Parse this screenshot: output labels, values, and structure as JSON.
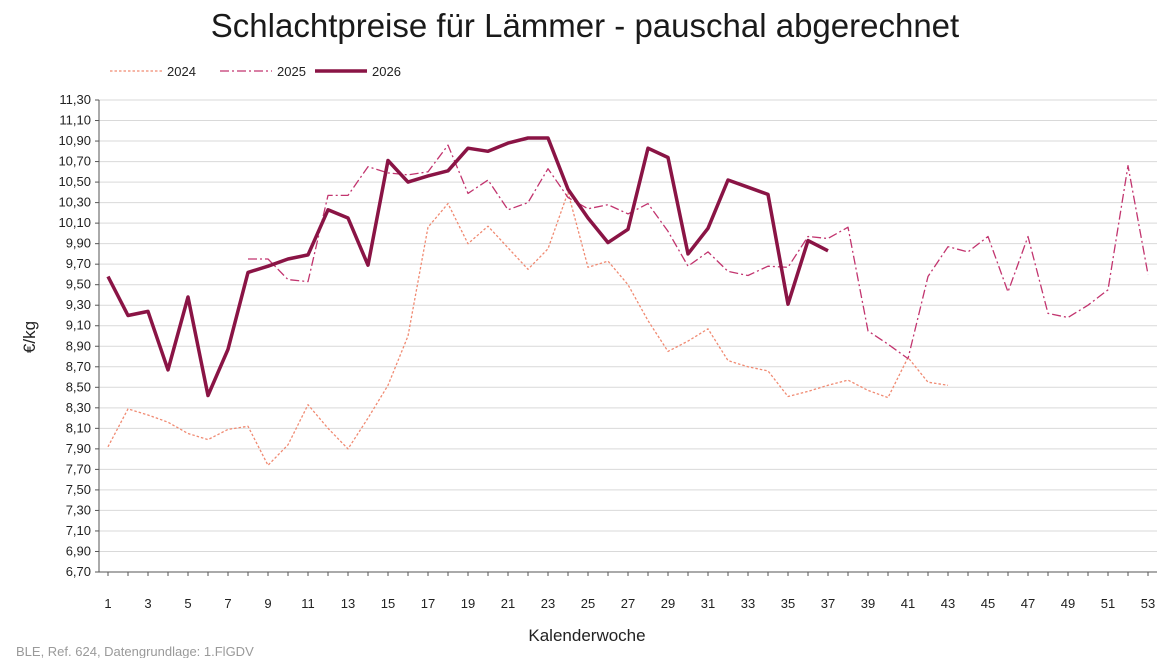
{
  "chart_data": {
    "type": "line",
    "title": "Schlachtpreise für Lämmer - pauschal abgerechnet",
    "xlabel": "Kalenderwoche",
    "ylabel": "€/kg",
    "source": "BLE, Ref. 624, Datengrundlage: 1.FlGDV",
    "ylim": [
      6.7,
      11.3
    ],
    "xlim": [
      1,
      53
    ],
    "grid": "horizontal",
    "legend_position": "top-left",
    "x_ticks": [
      1,
      3,
      5,
      7,
      9,
      11,
      13,
      15,
      17,
      19,
      21,
      23,
      25,
      27,
      29,
      31,
      33,
      35,
      37,
      39,
      41,
      43,
      45,
      47,
      49,
      51,
      53
    ],
    "y_ticks": [
      "6,70",
      "6,90",
      "7,10",
      "7,30",
      "7,50",
      "7,70",
      "7,90",
      "8,10",
      "8,30",
      "8,50",
      "8,70",
      "8,90",
      "9,10",
      "9,30",
      "9,50",
      "9,70",
      "9,90",
      "10,10",
      "10,30",
      "10,50",
      "10,70",
      "10,90",
      "11,10",
      "11,30"
    ],
    "series": [
      {
        "name": "2024",
        "style": "dotted",
        "color": "#f08a72",
        "x": [
          1,
          2,
          3,
          4,
          5,
          6,
          7,
          8,
          9,
          10,
          11,
          12,
          13,
          14,
          15,
          16,
          17,
          18,
          19,
          20,
          21,
          22,
          23,
          24,
          25,
          26,
          27,
          28,
          29,
          30,
          31,
          32,
          33,
          34,
          35,
          36,
          37,
          38,
          39,
          40,
          41,
          42,
          43
        ],
        "values": [
          7.92,
          8.29,
          8.23,
          8.16,
          8.05,
          7.99,
          8.09,
          8.12,
          7.74,
          7.94,
          8.33,
          8.1,
          7.9,
          8.2,
          8.52,
          9.0,
          10.06,
          10.29,
          9.9,
          10.07,
          9.86,
          9.65,
          9.85,
          10.4,
          9.67,
          9.73,
          9.5,
          9.15,
          8.85,
          8.95,
          9.07,
          8.76,
          8.7,
          8.66,
          8.41,
          8.46,
          8.52,
          8.57,
          8.47,
          8.4,
          8.79,
          8.55,
          8.52
        ]
      },
      {
        "name": "2025",
        "style": "dash-dot",
        "color": "#c2356f",
        "x": [
          8,
          9,
          10,
          11,
          12,
          13,
          14,
          15,
          16,
          17,
          18,
          19,
          20,
          21,
          22,
          23,
          24,
          25,
          26,
          27,
          28,
          29,
          30,
          31,
          32,
          33,
          34,
          35,
          36,
          37,
          38,
          39,
          40,
          41,
          42,
          43,
          44,
          45,
          46,
          47,
          48,
          49,
          50,
          51,
          52,
          53
        ],
        "values": [
          9.75,
          9.75,
          9.55,
          9.53,
          10.37,
          10.37,
          10.65,
          10.59,
          10.57,
          10.6,
          10.86,
          10.39,
          10.52,
          10.23,
          10.3,
          10.63,
          10.35,
          10.24,
          10.28,
          10.19,
          10.29,
          10.02,
          9.68,
          9.82,
          9.63,
          9.59,
          9.68,
          9.67,
          9.97,
          9.95,
          10.06,
          9.05,
          8.92,
          8.78,
          9.58,
          9.87,
          9.82,
          9.97,
          9.43,
          9.97,
          9.22,
          9.18,
          9.3,
          9.45,
          10.66,
          9.6
        ]
      },
      {
        "name": "2026",
        "style": "solid",
        "color": "#8a1445",
        "x": [
          1,
          2,
          3,
          4,
          5,
          6,
          7,
          8,
          9,
          10,
          11,
          12,
          13,
          14,
          15,
          16,
          17,
          18,
          19,
          20,
          21,
          22,
          23,
          24,
          25,
          26,
          27,
          28,
          29,
          30,
          31,
          32,
          33,
          34,
          35,
          36,
          37
        ],
        "values": [
          9.58,
          9.2,
          9.24,
          8.67,
          9.38,
          8.42,
          8.87,
          9.62,
          9.68,
          9.75,
          9.79,
          10.23,
          10.15,
          9.69,
          10.71,
          10.5,
          10.56,
          10.61,
          10.83,
          10.8,
          10.88,
          10.93,
          10.93,
          10.43,
          10.15,
          9.91,
          10.04,
          10.83,
          10.74,
          9.8,
          10.05,
          10.52,
          10.45,
          10.38,
          9.31,
          9.93,
          9.83
        ]
      }
    ]
  }
}
